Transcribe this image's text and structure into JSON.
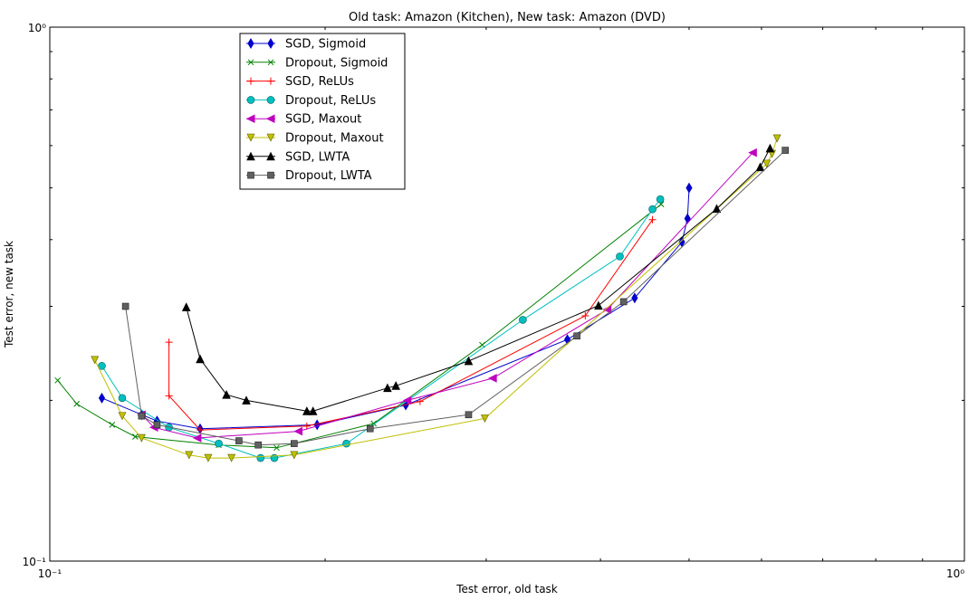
{
  "chart_data": {
    "type": "line",
    "title": "Old task: Amazon (Kitchen), New task: Amazon (DVD)",
    "xlabel": "Test error, old task",
    "ylabel": "Test error, new task",
    "xscale": "log",
    "yscale": "log",
    "xlim": [
      0.1,
      1.0
    ],
    "ylim": [
      0.1,
      1.0
    ],
    "x_tick_labels": [
      "10⁻¹",
      "10⁰"
    ],
    "y_tick_labels": [
      "10⁻¹",
      "10⁰"
    ],
    "legend_position": "upper-left",
    "grid": false,
    "series": [
      {
        "name": "SGD, Sigmoid",
        "color": "#0000cc",
        "marker": "diamond",
        "x": [
          0.114,
          0.126,
          0.131,
          0.146,
          0.196,
          0.245,
          0.368,
          0.436,
          0.491,
          0.498,
          0.5
        ],
        "y": [
          0.202,
          0.188,
          0.183,
          0.177,
          0.18,
          0.196,
          0.26,
          0.311,
          0.396,
          0.438,
          0.5
        ]
      },
      {
        "name": "Dropout, Sigmoid",
        "color": "#008000",
        "marker": "x",
        "x": [
          0.102,
          0.107,
          0.117,
          0.124,
          0.153,
          0.177,
          0.226,
          0.297,
          0.466
        ],
        "y": [
          0.218,
          0.197,
          0.18,
          0.171,
          0.165,
          0.163,
          0.181,
          0.254,
          0.466
        ]
      },
      {
        "name": "SGD, ReLUs",
        "color": "#ff0000",
        "marker": "plus",
        "x": [
          0.135,
          0.135,
          0.146,
          0.191,
          0.254,
          0.385,
          0.456
        ],
        "y": [
          0.257,
          0.204,
          0.176,
          0.179,
          0.199,
          0.288,
          0.436
        ]
      },
      {
        "name": "Dropout, ReLUs",
        "color": "#00bfbf",
        "marker": "circle",
        "x": [
          0.114,
          0.12,
          0.135,
          0.153,
          0.17,
          0.176,
          0.211,
          0.329,
          0.42,
          0.456,
          0.465
        ],
        "y": [
          0.232,
          0.202,
          0.178,
          0.166,
          0.156,
          0.156,
          0.166,
          0.283,
          0.372,
          0.456,
          0.476
        ]
      },
      {
        "name": "SGD, Maxout",
        "color": "#bf00bf",
        "marker": "triangle-left",
        "x": [
          0.126,
          0.13,
          0.145,
          0.187,
          0.246,
          0.305,
          0.407,
          0.587
        ],
        "y": [
          0.188,
          0.178,
          0.17,
          0.175,
          0.2,
          0.22,
          0.296,
          0.582
        ]
      },
      {
        "name": "Dropout, Maxout",
        "color": "#bfbf00",
        "marker": "triangle-down",
        "x": [
          0.112,
          0.12,
          0.126,
          0.142,
          0.149,
          0.158,
          0.185,
          0.299,
          0.608,
          0.616,
          0.624
        ],
        "y": [
          0.238,
          0.187,
          0.17,
          0.158,
          0.156,
          0.156,
          0.158,
          0.185,
          0.555,
          0.579,
          0.619
        ]
      },
      {
        "name": "SGD, LWTA",
        "color": "#000000",
        "marker": "triangle-up",
        "x": [
          0.141,
          0.146,
          0.156,
          0.164,
          0.191,
          0.194,
          0.234,
          0.239,
          0.287,
          0.398,
          0.536,
          0.598,
          0.613
        ],
        "y": [
          0.299,
          0.239,
          0.205,
          0.2,
          0.191,
          0.191,
          0.211,
          0.213,
          0.237,
          0.301,
          0.457,
          0.547,
          0.593
        ]
      },
      {
        "name": "Dropout, LWTA",
        "color": "#606060",
        "marker": "square",
        "x": [
          0.121,
          0.126,
          0.131,
          0.161,
          0.169,
          0.185,
          0.224,
          0.287,
          0.377,
          0.424,
          0.637
        ],
        "y": [
          0.3,
          0.187,
          0.18,
          0.168,
          0.165,
          0.166,
          0.177,
          0.188,
          0.264,
          0.306,
          0.588
        ]
      }
    ]
  }
}
